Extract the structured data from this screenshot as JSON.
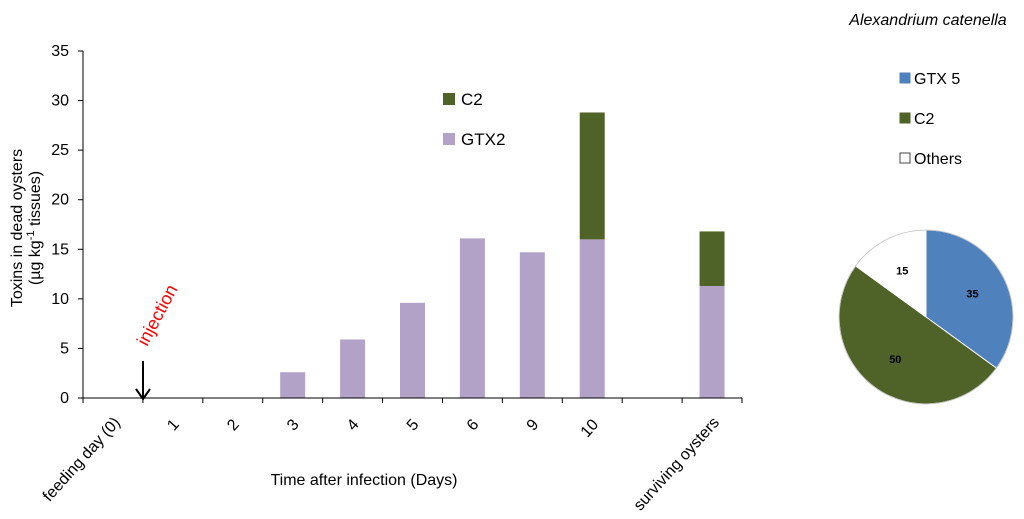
{
  "chart_data": [
    {
      "type": "bar",
      "stacked": true,
      "xlabel": "Time after infection (Days)",
      "ylabel_line1": "Toxins in dead oysters",
      "ylabel_line2_pre": "(µg kg",
      "ylabel_line2_sup": "-1",
      "ylabel_line2_post": " tissues)",
      "ylim": [
        0,
        35
      ],
      "yticks": [
        0,
        5,
        10,
        15,
        20,
        25,
        30,
        35
      ],
      "categories": [
        "feeding day  (0)",
        "1",
        "2",
        "3",
        "4",
        "5",
        "6",
        "9",
        "10",
        "",
        "surviving oysters"
      ],
      "series": [
        {
          "name": "GTX2",
          "color": "#b3a2c7",
          "values": [
            0,
            0,
            0,
            2.6,
            5.9,
            9.6,
            16.1,
            14.7,
            16.0,
            0,
            11.3
          ]
        },
        {
          "name": "C2",
          "color": "#4f6228",
          "values": [
            0,
            0,
            0,
            0,
            0,
            0,
            0,
            0,
            12.8,
            0,
            5.5
          ]
        }
      ],
      "legend": "upper-center",
      "annotation": {
        "text": "injection",
        "color": "#ff0000",
        "category": "1"
      }
    },
    {
      "type": "pie",
      "title": "Alexandrium catenella",
      "slices": [
        {
          "label": "GTX 5",
          "value": 35,
          "color": "#4f81bd"
        },
        {
          "label": "C2",
          "value": 50,
          "color": "#4f6228"
        },
        {
          "label": "Others",
          "value": 15,
          "color": "#ffffff"
        }
      ],
      "legend": "above"
    }
  ]
}
